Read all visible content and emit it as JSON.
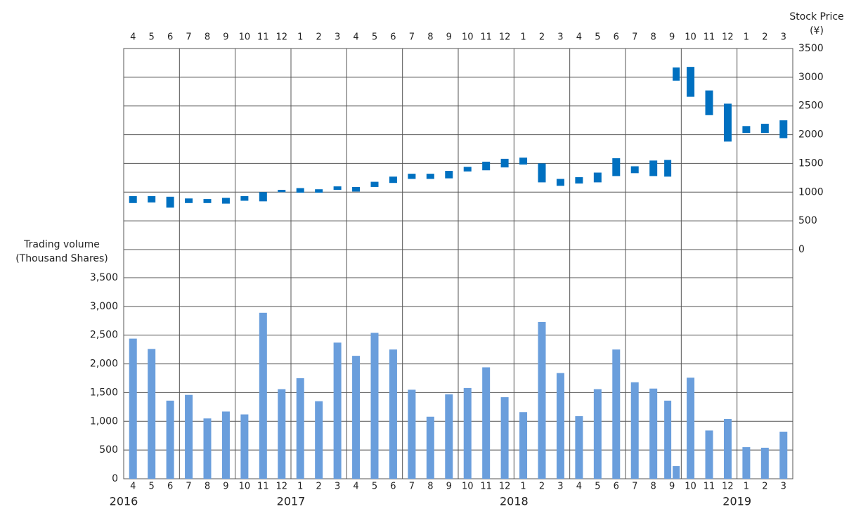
{
  "chart_data": {
    "type": "price_volume",
    "price_axis_label": [
      "Stock Price",
      "(¥)"
    ],
    "volume_axis_label": [
      "Trading volume",
      "(Thousand Shares)"
    ],
    "categories": [
      "4",
      "5",
      "6",
      "7",
      "8",
      "9",
      "10",
      "11",
      "12",
      "1",
      "2",
      "3",
      "4",
      "5",
      "6",
      "7",
      "8",
      "9",
      "10",
      "11",
      "12",
      "1",
      "2",
      "3",
      "4",
      "5",
      "6",
      "7",
      "8",
      "9",
      "10",
      "11",
      "12",
      "1",
      "2",
      "3"
    ],
    "years": [
      "2016",
      null,
      null,
      null,
      null,
      null,
      null,
      null,
      null,
      "2017",
      null,
      null,
      null,
      null,
      null,
      null,
      null,
      null,
      null,
      null,
      null,
      "2018",
      null,
      null,
      null,
      null,
      null,
      null,
      null,
      null,
      null,
      null,
      null,
      "2019",
      null,
      null
    ],
    "price": {
      "color": "#0070c0",
      "axis": "y2",
      "values": [
        [
          [
            810,
            930
          ]
        ],
        [
          [
            820,
            930
          ]
        ],
        [
          [
            730,
            920
          ]
        ],
        [
          [
            810,
            890
          ]
        ],
        [
          [
            810,
            880
          ]
        ],
        [
          [
            800,
            900
          ]
        ],
        [
          [
            850,
            930
          ]
        ],
        [
          [
            840,
            1000
          ]
        ],
        [
          [
            1000,
            1040
          ]
        ],
        [
          [
            990,
            1070
          ]
        ],
        [
          [
            990,
            1050
          ]
        ],
        [
          [
            1040,
            1100
          ]
        ],
        [
          [
            1010,
            1090
          ]
        ],
        [
          [
            1090,
            1180
          ]
        ],
        [
          [
            1160,
            1270
          ]
        ],
        [
          [
            1230,
            1320
          ]
        ],
        [
          [
            1230,
            1320
          ]
        ],
        [
          [
            1240,
            1370
          ]
        ],
        [
          [
            1360,
            1440
          ]
        ],
        [
          [
            1380,
            1530
          ]
        ],
        [
          [
            1430,
            1580
          ]
        ],
        [
          [
            1480,
            1600
          ]
        ],
        [
          [
            1170,
            1500
          ]
        ],
        [
          [
            1110,
            1230
          ]
        ],
        [
          [
            1150,
            1260
          ]
        ],
        [
          [
            1170,
            1340
          ]
        ],
        [
          [
            1280,
            1590
          ]
        ],
        [
          [
            1330,
            1450
          ]
        ],
        [
          [
            1280,
            1550
          ]
        ],
        [
          [
            1270,
            1560
          ],
          [
            2940,
            3170
          ]
        ],
        [
          [
            2660,
            3180
          ]
        ],
        [
          [
            2340,
            2770
          ]
        ],
        [
          [
            1880,
            2540
          ]
        ],
        [
          [
            2030,
            2150
          ]
        ],
        [
          [
            2030,
            2190
          ]
        ],
        [
          [
            1940,
            2250
          ]
        ]
      ]
    },
    "volume": {
      "color": "#6a9edc",
      "values": [
        [
          2440
        ],
        [
          2260
        ],
        [
          1360
        ],
        [
          1460
        ],
        [
          1050
        ],
        [
          1170
        ],
        [
          1120
        ],
        [
          2890
        ],
        [
          1560
        ],
        [
          1750
        ],
        [
          1350
        ],
        [
          2370
        ],
        [
          2140
        ],
        [
          2540
        ],
        [
          2250
        ],
        [
          1550
        ],
        [
          1080
        ],
        [
          1470
        ],
        [
          1580
        ],
        [
          1940
        ],
        [
          1420
        ],
        [
          1160
        ],
        [
          2730
        ],
        [
          1840
        ],
        [
          1090
        ],
        [
          1560
        ],
        [
          2250
        ],
        [
          1680
        ],
        [
          1570
        ],
        [
          1360,
          220
        ],
        [
          1760
        ],
        [
          840
        ],
        [
          1040
        ],
        [
          550
        ],
        [
          540
        ],
        [
          820
        ]
      ]
    },
    "y2lim": [
      0,
      3500
    ],
    "y2ticks": [
      0,
      500,
      1000,
      1500,
      2000,
      2500,
      3000,
      3500
    ],
    "ylim": [
      0,
      3500
    ],
    "yticks": [
      0,
      500,
      {
        "value": 1000,
        "label": "1,000"
      },
      {
        "value": 1500,
        "label": "1,500"
      },
      {
        "value": 2000,
        "label": "2,000"
      },
      {
        "value": 2500,
        "label": "2,500"
      },
      {
        "value": 3000,
        "label": "3,000"
      },
      {
        "value": 3500,
        "label": "3,500"
      }
    ],
    "grid": true
  }
}
